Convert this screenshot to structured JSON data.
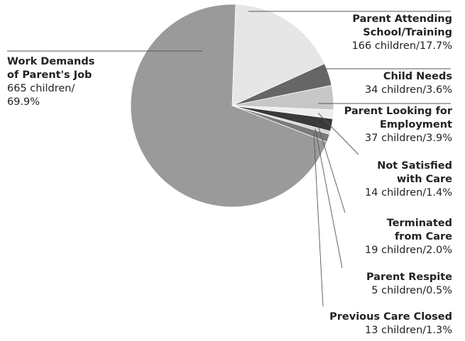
{
  "chart_data": {
    "type": "pie",
    "slices": [
      {
        "label": "Parent Attending School/Training",
        "label_lines": [
          "Parent Attending",
          "School/Training"
        ],
        "value_text": "166 children/17.7%",
        "children": 166,
        "percent": 17.7,
        "color": "#e6e6e6"
      },
      {
        "label": "Child Needs",
        "label_lines": [
          "Child Needs"
        ],
        "value_text": "34 children/3.6%",
        "children": 34,
        "percent": 3.6,
        "color": "#666666"
      },
      {
        "label": "Parent Looking for Employment",
        "label_lines": [
          "Parent Looking for",
          "Employment"
        ],
        "value_text": "37 children/3.9%",
        "children": 37,
        "percent": 3.9,
        "color": "#c7c7c7"
      },
      {
        "label": "Not Satisfied with Care",
        "label_lines": [
          "Not Satisfied",
          "with Care"
        ],
        "value_text": "14 children/1.4%",
        "children": 14,
        "percent": 1.4,
        "color": "#ededed"
      },
      {
        "label": "Terminated from Care",
        "label_lines": [
          "Terminated",
          "from Care"
        ],
        "value_text": "19 children/2.0%",
        "children": 19,
        "percent": 2.0,
        "color": "#3a3a3a"
      },
      {
        "label": "Parent Respite",
        "label_lines": [
          "Parent Respite"
        ],
        "value_text": "5 children/0.5%",
        "children": 5,
        "percent": 0.5,
        "color": "#d4d4d4"
      },
      {
        "label": "Previous Care Closed",
        "label_lines": [
          "Previous Care Closed"
        ],
        "value_text": "13 children/1.3%",
        "children": 13,
        "percent": 1.3,
        "color": "#7a7a7a"
      },
      {
        "label": "Work Demands of Parent's Job",
        "label_lines": [
          "Work Demands",
          "of Parent's Job"
        ],
        "value_text": "665 children/ 69.9%",
        "value_lines": [
          "665 children/",
          "69.9%"
        ],
        "children": 665,
        "percent": 69.9,
        "color": "#9a9a9a"
      }
    ]
  }
}
